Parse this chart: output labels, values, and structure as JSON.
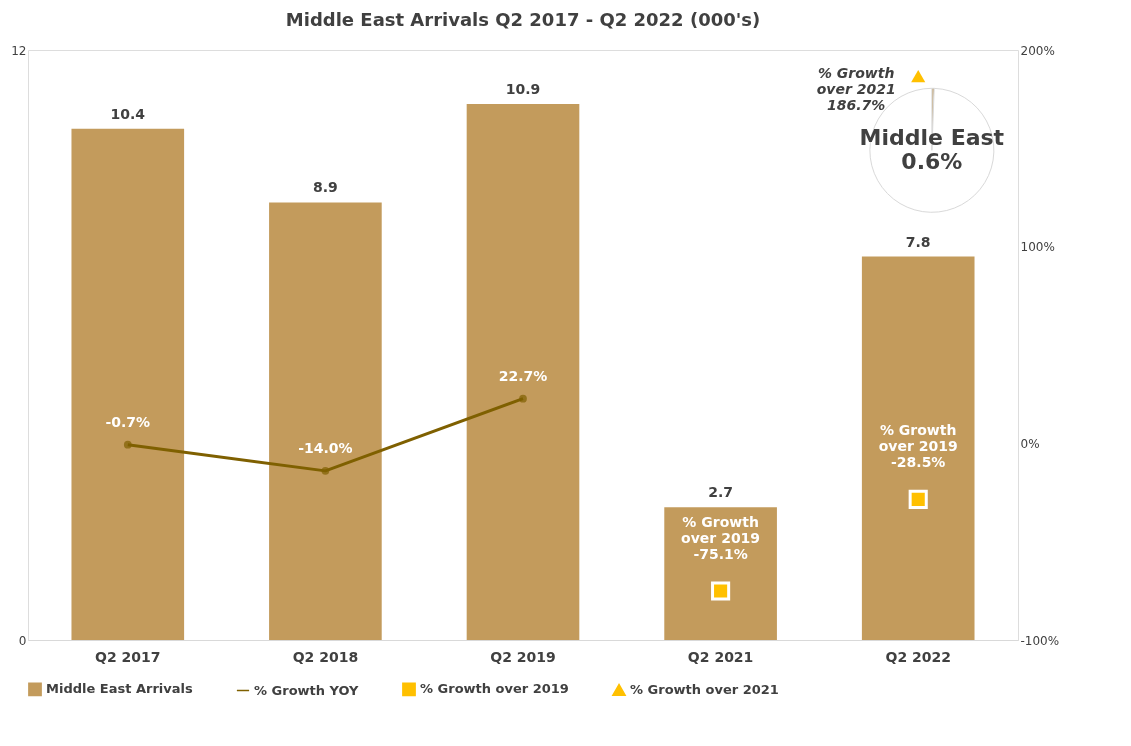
{
  "chart_data": [
    {
      "type": "bar",
      "title": "Middle East Arrivals Q2 2017 - Q2 2022 (000's)",
      "categories": [
        "Q2 2017",
        "Q2 2018",
        "Q2 2019",
        "Q2 2021",
        "Q2 2022"
      ],
      "series": [
        {
          "name": "Middle East Arrivals",
          "type": "bar",
          "color": "#c39b5c",
          "values": [
            10.4,
            8.9,
            10.9,
            2.7,
            7.8
          ],
          "value_labels": [
            "10.4",
            "8.9",
            "10.9",
            "2.7",
            "7.8"
          ]
        },
        {
          "name": "% Growth YOY",
          "type": "line",
          "axis": "y2",
          "color": "#7f6000",
          "marker": "circle",
          "values": [
            -0.7,
            -14.0,
            22.7,
            null,
            null
          ],
          "value_labels": [
            "-0.7%",
            "-14.0%",
            "22.7%",
            null,
            null
          ]
        },
        {
          "name": "% Growth over 2019",
          "type": "scatter",
          "axis": "y2",
          "color": "#ffc000",
          "marker": "square",
          "values": [
            null,
            null,
            null,
            -75.1,
            -28.5
          ],
          "value_labels": [
            null,
            null,
            null,
            "% Growth\nover 2019\n-75.1%",
            "% Growth\nover 2019\n-28.5%"
          ]
        },
        {
          "name": "% Growth over 2021",
          "type": "scatter",
          "axis": "y2",
          "color": "#ffc000",
          "marker": "triangle",
          "values": [
            null,
            null,
            null,
            null,
            186.7
          ],
          "value_labels": [
            null,
            null,
            null,
            null,
            "% Growth\nover 2021\n186.7%"
          ]
        }
      ],
      "ylim": [
        0,
        12
      ],
      "yticks": [
        0,
        12
      ],
      "y2lim": [
        -100,
        200
      ],
      "y2ticks": [
        {
          "value": -100,
          "label": "-100%"
        },
        {
          "value": 0,
          "label": "0%"
        },
        {
          "value": 100,
          "label": "100%"
        },
        {
          "value": 200,
          "label": "200%"
        }
      ],
      "legend": "bottom"
    },
    {
      "type": "pie",
      "categories": [
        "Middle East",
        null
      ],
      "values": [
        0.6,
        99.4
      ],
      "colors": [
        "#c39b5c",
        "#ffffff"
      ],
      "value_labels": [
        "0.6%",
        null
      ]
    }
  ]
}
